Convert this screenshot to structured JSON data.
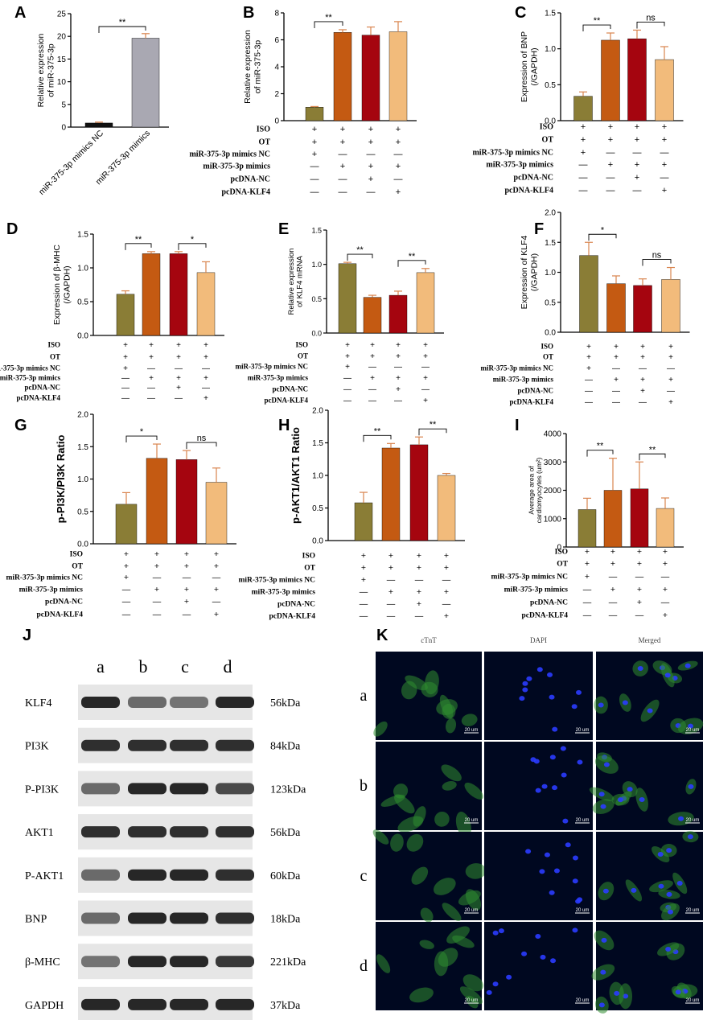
{
  "colors": {
    "olive": "#8a7d36",
    "orange": "#c45a12",
    "red": "#a5050f",
    "peach": "#f2bb7b",
    "black": "#111111",
    "gray": "#a9a8b2",
    "error": "#d9844e",
    "fluor_green": "#2f8c2f",
    "fluor_blue": "#2a3cff"
  },
  "row_labels": [
    "ISO",
    "OT",
    "miR-375-3p mimics NC",
    "miR-375-3p mimics",
    "pcDNA-NC",
    "pcDNA-KLF4"
  ],
  "condition_matrix": [
    [
      "+",
      "+",
      "+",
      "+"
    ],
    [
      "+",
      "+",
      "+",
      "+"
    ],
    [
      "+",
      "—",
      "—",
      "—"
    ],
    [
      "—",
      "+",
      "+",
      "+"
    ],
    [
      "—",
      "—",
      "+",
      "—"
    ],
    [
      "—",
      "—",
      "—",
      "+"
    ]
  ],
  "chart_data": [
    {
      "panel": "A",
      "type": "bar",
      "ylabel": "Relative expression of miR-375-3p",
      "categories": [
        "miR-375-3p mimics NC",
        "miR-375-3p mimics"
      ],
      "values": [
        0.9,
        19.6
      ],
      "errors": [
        0.2,
        1.0
      ],
      "ylim": [
        0,
        25
      ],
      "yticks": [
        0,
        5,
        10,
        15,
        20,
        25
      ],
      "tick_labels": [
        "0",
        "5",
        "10",
        "15",
        "20",
        "25"
      ],
      "bar_colors": [
        "black",
        "gray"
      ],
      "sig": [
        {
          "from": 0,
          "to": 1,
          "label": "**"
        }
      ]
    },
    {
      "panel": "B",
      "type": "bar",
      "ylabel": "Relative expression of miR-375-3p",
      "values": [
        1.0,
        6.55,
        6.35,
        6.6
      ],
      "errors": [
        0.05,
        0.2,
        0.6,
        0.75
      ],
      "ylim": [
        0,
        8
      ],
      "yticks": [
        0,
        2,
        4,
        6,
        8
      ],
      "tick_labels": [
        "0",
        "2",
        "4",
        "6",
        "8"
      ],
      "sig": [
        {
          "from": 0,
          "to": 1,
          "label": "**"
        }
      ]
    },
    {
      "panel": "C",
      "type": "bar",
      "ylabel": "Expression of BNP (/GAPDH)",
      "values": [
        0.34,
        1.12,
        1.14,
        0.85
      ],
      "errors": [
        0.06,
        0.1,
        0.12,
        0.18
      ],
      "ylim": [
        0,
        1.5
      ],
      "yticks": [
        0,
        0.5,
        1.0,
        1.5
      ],
      "tick_labels": [
        "0.0",
        "0.5",
        "1.0",
        "1.5"
      ],
      "sig": [
        {
          "from": 0,
          "to": 1,
          "label": "**"
        },
        {
          "from": 2,
          "to": 3,
          "label": "ns"
        }
      ]
    },
    {
      "panel": "D",
      "type": "bar",
      "ylabel": "Expression of β-MHC (/GAPDH)",
      "values": [
        0.61,
        1.21,
        1.21,
        0.93
      ],
      "errors": [
        0.05,
        0.03,
        0.03,
        0.16
      ],
      "ylim": [
        0,
        1.5
      ],
      "yticks": [
        0,
        0.5,
        1.0,
        1.5
      ],
      "tick_labels": [
        "0.0",
        "0.5",
        "1.0",
        "1.5"
      ],
      "sig": [
        {
          "from": 0,
          "to": 1,
          "label": "**"
        },
        {
          "from": 2,
          "to": 3,
          "label": "*"
        }
      ]
    },
    {
      "panel": "E",
      "type": "bar",
      "ylabel": "Relative expression of KLF4 mRNA",
      "values": [
        1.01,
        0.52,
        0.55,
        0.88
      ],
      "errors": [
        0.02,
        0.03,
        0.06,
        0.06
      ],
      "ylim": [
        0,
        1.5
      ],
      "yticks": [
        0,
        0.5,
        1.0,
        1.5
      ],
      "tick_labels": [
        "0.0",
        "0.5",
        "1.0",
        "1.5"
      ],
      "sig": [
        {
          "from": 0,
          "to": 1,
          "label": "**"
        },
        {
          "from": 2,
          "to": 3,
          "label": "**"
        }
      ]
    },
    {
      "panel": "F",
      "type": "bar",
      "ylabel": "Expression of KLF4 (/GAPDH)",
      "values": [
        1.28,
        0.81,
        0.78,
        0.88
      ],
      "errors": [
        0.22,
        0.13,
        0.11,
        0.2
      ],
      "ylim": [
        0,
        2.0
      ],
      "yticks": [
        0,
        0.5,
        1.0,
        1.5,
        2.0
      ],
      "tick_labels": [
        "0.0",
        "0.5",
        "1.0",
        "1.5",
        "2.0"
      ],
      "sig": [
        {
          "from": 0,
          "to": 1,
          "label": "*"
        },
        {
          "from": 2,
          "to": 3,
          "label": "ns"
        }
      ]
    },
    {
      "panel": "G",
      "type": "bar",
      "ylabel": "p-PI3K/PI3K Ratio",
      "values": [
        0.61,
        1.32,
        1.3,
        0.95
      ],
      "errors": [
        0.18,
        0.22,
        0.14,
        0.22
      ],
      "ylim": [
        0,
        2.0
      ],
      "yticks": [
        0,
        0.5,
        1.0,
        1.5,
        2.0
      ],
      "tick_labels": [
        "0.0",
        "0.5",
        "1.0",
        "1.5",
        "2.0"
      ],
      "sig": [
        {
          "from": 0,
          "to": 1,
          "label": "*"
        },
        {
          "from": 2,
          "to": 3,
          "label": "ns"
        }
      ]
    },
    {
      "panel": "H",
      "type": "bar",
      "ylabel": "p-AKT1/AKT1 Ratio",
      "values": [
        0.58,
        1.42,
        1.47,
        1.0
      ],
      "errors": [
        0.16,
        0.07,
        0.12,
        0.03
      ],
      "ylim": [
        0,
        2.0
      ],
      "yticks": [
        0,
        0.5,
        1.0,
        1.5,
        2.0
      ],
      "tick_labels": [
        "0.0",
        "0.5",
        "1.0",
        "1.5",
        "2.0"
      ],
      "sig": [
        {
          "from": 0,
          "to": 1,
          "label": "**"
        },
        {
          "from": 2,
          "to": 3,
          "label": "**"
        }
      ]
    },
    {
      "panel": "I",
      "type": "bar",
      "ylabel": "Average area of cardiomyocytes (um²)",
      "values": [
        1320,
        2000,
        2050,
        1360
      ],
      "errors": [
        400,
        1130,
        950,
        370
      ],
      "ylim": [
        0,
        4000
      ],
      "yticks": [
        0,
        1000,
        2000,
        3000,
        4000
      ],
      "tick_labels": [
        "0",
        "1000",
        "2000",
        "3000",
        "4000"
      ],
      "sig": [
        {
          "from": 0,
          "to": 1,
          "label": "**"
        },
        {
          "from": 2,
          "to": 3,
          "label": "**"
        }
      ]
    }
  ],
  "western": {
    "panel": "J",
    "lanes": [
      "a",
      "b",
      "c",
      "d"
    ],
    "rows": [
      {
        "protein": "KLF4",
        "mw": "56kDa",
        "intensity": [
          0.95,
          0.55,
          0.5,
          0.95
        ]
      },
      {
        "protein": "PI3K",
        "mw": "84kDa",
        "intensity": [
          0.9,
          0.9,
          0.9,
          0.9
        ]
      },
      {
        "protein": "P-PI3K",
        "mw": "123kDa",
        "intensity": [
          0.55,
          0.95,
          0.95,
          0.75
        ]
      },
      {
        "protein": "AKT1",
        "mw": "56kDa",
        "intensity": [
          0.9,
          0.9,
          0.9,
          0.9
        ]
      },
      {
        "protein": "P-AKT1",
        "mw": "60kDa",
        "intensity": [
          0.55,
          0.95,
          0.95,
          0.9
        ]
      },
      {
        "protein": "BNP",
        "mw": "18kDa",
        "intensity": [
          0.55,
          0.95,
          0.95,
          0.9
        ]
      },
      {
        "protein": "β-MHC",
        "mw": "221kDa",
        "intensity": [
          0.5,
          0.95,
          0.95,
          0.85
        ]
      },
      {
        "protein": "GAPDH",
        "mw": "37kDa",
        "intensity": [
          0.95,
          0.95,
          0.95,
          0.95
        ]
      }
    ]
  },
  "fluorescence": {
    "panel": "K",
    "columns": [
      "cTnT",
      "DAPI",
      "Merged"
    ],
    "rows": [
      "a",
      "b",
      "c",
      "d"
    ],
    "scale_bar": "20 um"
  }
}
